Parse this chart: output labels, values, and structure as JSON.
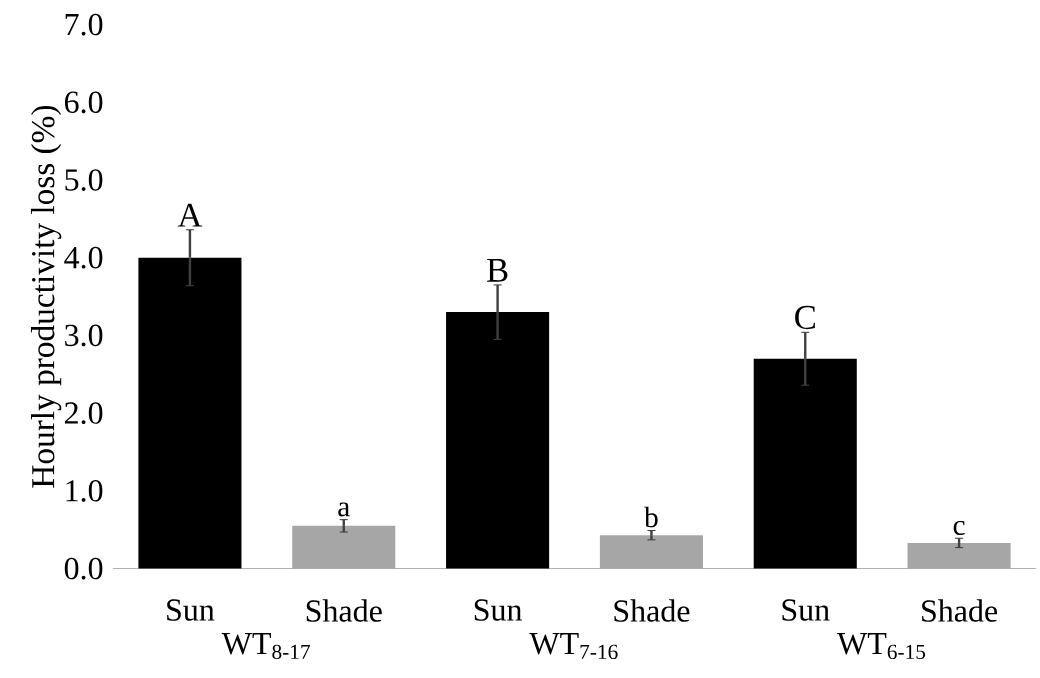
{
  "chart_data": {
    "type": "bar",
    "ylabel": "Hourly productivity loss (%)",
    "categories": [
      "Sun",
      "Shade",
      "Sun",
      "Shade",
      "Sun",
      "Shade"
    ],
    "values": [
      4.0,
      0.55,
      3.3,
      0.43,
      2.7,
      0.33
    ],
    "errors": [
      0.36,
      0.08,
      0.35,
      0.06,
      0.34,
      0.06
    ],
    "colors": [
      "#000000",
      "#a6a6a6",
      "#000000",
      "#a6a6a6",
      "#000000",
      "#a6a6a6"
    ],
    "ylim": [
      0,
      7
    ],
    "yticks": [
      {
        "value": 0,
        "label": "0.0"
      },
      {
        "value": 1,
        "label": "1.0"
      },
      {
        "value": 2,
        "label": "2.0"
      },
      {
        "value": 3,
        "label": "3.0"
      },
      {
        "value": 4,
        "label": "4.0"
      },
      {
        "value": 5,
        "label": "5.0"
      },
      {
        "value": 6,
        "label": "6.0"
      },
      {
        "value": 7,
        "label": "7.0"
      }
    ],
    "annotations": [
      "A",
      "a",
      "B",
      "b",
      "C",
      "c",
      "WT$_{8-17}$",
      "WT$_{7-16}$",
      "WT$_{6-15}$"
    ]
  }
}
